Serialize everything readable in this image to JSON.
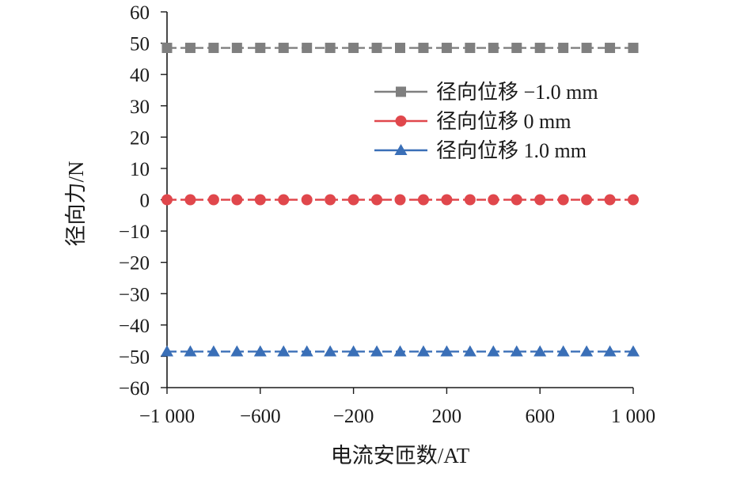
{
  "chart_data": {
    "type": "line",
    "title": "",
    "xlabel": "电流安匝数/AT",
    "ylabel": "径向力/N",
    "xlim": [
      -1000,
      1000
    ],
    "ylim": [
      -60,
      60
    ],
    "x_ticks": [
      -1000,
      -600,
      -200,
      200,
      600,
      1000
    ],
    "x_tick_labels": [
      "−1 000",
      "−600",
      "−200",
      "200",
      "600",
      "1 000"
    ],
    "y_ticks": [
      60,
      50,
      40,
      30,
      20,
      10,
      0,
      -10,
      -20,
      -30,
      -40,
      -50,
      -60
    ],
    "y_tick_labels": [
      "60",
      "50",
      "40",
      "30",
      "20",
      "10",
      "0",
      "−10",
      "−20",
      "−30",
      "−40",
      "−50",
      "−60"
    ],
    "grid": false,
    "legend_position": "top-right",
    "x": [
      -1000,
      -900,
      -800,
      -700,
      -600,
      -500,
      -400,
      -300,
      -200,
      -100,
      0,
      100,
      200,
      300,
      400,
      500,
      600,
      700,
      800,
      900,
      1000
    ],
    "series": [
      {
        "name": "径向位移 −1.0 mm",
        "marker": "square",
        "color": "#7f7f7f",
        "values": [
          48.5,
          48.5,
          48.5,
          48.5,
          48.5,
          48.5,
          48.5,
          48.5,
          48.5,
          48.5,
          48.5,
          48.5,
          48.5,
          48.5,
          48.5,
          48.5,
          48.5,
          48.5,
          48.5,
          48.5,
          48.5
        ]
      },
      {
        "name": "径向位移 0 mm",
        "marker": "circle",
        "color": "#e0474c",
        "values": [
          0,
          0,
          0,
          0,
          0,
          0,
          0,
          0,
          0,
          0,
          0,
          0,
          0,
          0,
          0,
          0,
          0,
          0,
          0,
          0,
          0
        ]
      },
      {
        "name": "径向位移 1.0 mm",
        "marker": "triangle",
        "color": "#3a6fb7",
        "values": [
          -48.5,
          -48.5,
          -48.5,
          -48.5,
          -48.5,
          -48.5,
          -48.5,
          -48.5,
          -48.5,
          -48.5,
          -48.5,
          -48.5,
          -48.5,
          -48.5,
          -48.5,
          -48.5,
          -48.5,
          -48.5,
          -48.5,
          -48.5,
          -48.5
        ]
      }
    ]
  }
}
